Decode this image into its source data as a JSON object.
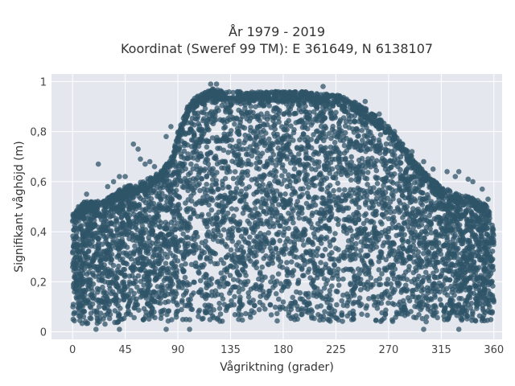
{
  "chart_data": {
    "type": "scatter",
    "title": "År 1979 - 2019",
    "subtitle": "Koordinat (Sweref 99 TM): E 361649, N 6138107",
    "xlabel": "Vågriktning (grader)",
    "ylabel": "Signifikant våghöjd (m)",
    "xlim": [
      -18,
      367
    ],
    "ylim": [
      -0.03,
      1.03
    ],
    "x_ticks": [
      0,
      45,
      90,
      135,
      180,
      225,
      270,
      315,
      360
    ],
    "y_ticks": [
      0,
      0.2,
      0.4,
      0.6,
      0.8,
      1
    ],
    "y_tick_labels": [
      "0",
      "0,2",
      "0,4",
      "0,6",
      "0,8",
      "1"
    ],
    "x_tick_labels": [
      "0",
      "45",
      "90",
      "135",
      "180",
      "225",
      "270",
      "315",
      "360"
    ],
    "grid": true,
    "legend": "none",
    "marker_color": "#2f5468",
    "background_color": "#e5e7ef",
    "envelope": {
      "x": [
        0,
        10,
        20,
        30,
        45,
        60,
        75,
        85,
        90,
        100,
        110,
        120,
        135,
        150,
        180,
        200,
        210,
        225,
        240,
        255,
        270,
        280,
        290,
        300,
        315,
        330,
        345,
        355,
        360
      ],
      "y_max": [
        0.47,
        0.52,
        0.52,
        0.54,
        0.58,
        0.6,
        0.64,
        0.7,
        0.8,
        0.92,
        0.95,
        0.97,
        0.96,
        0.96,
        0.96,
        0.96,
        0.95,
        0.95,
        0.92,
        0.88,
        0.82,
        0.76,
        0.7,
        0.64,
        0.58,
        0.55,
        0.53,
        0.5,
        0.4
      ],
      "y_min": [
        0.03,
        0.03,
        0.03,
        0.03,
        0.04,
        0.04,
        0.04,
        0.04,
        0.04,
        0.04,
        0.04,
        0.04,
        0.04,
        0.04,
        0.04,
        0.04,
        0.04,
        0.04,
        0.04,
        0.04,
        0.04,
        0.04,
        0.04,
        0.04,
        0.04,
        0.04,
        0.04,
        0.04,
        0.05
      ]
    },
    "outliers": [
      {
        "x": 22,
        "y": 0.67
      },
      {
        "x": 40,
        "y": 0.62
      },
      {
        "x": 45,
        "y": 0.62
      },
      {
        "x": 52,
        "y": 0.75
      },
      {
        "x": 56,
        "y": 0.73
      },
      {
        "x": 58,
        "y": 0.69
      },
      {
        "x": 62,
        "y": 0.67
      },
      {
        "x": 66,
        "y": 0.68
      },
      {
        "x": 70,
        "y": 0.66
      },
      {
        "x": 80,
        "y": 0.78
      },
      {
        "x": 84,
        "y": 0.82
      },
      {
        "x": 30,
        "y": 0.58
      },
      {
        "x": 35,
        "y": 0.6
      },
      {
        "x": 12,
        "y": 0.55
      },
      {
        "x": 5,
        "y": 0.5
      },
      {
        "x": 118,
        "y": 0.99
      },
      {
        "x": 123,
        "y": 0.99
      },
      {
        "x": 214,
        "y": 0.98
      },
      {
        "x": 250,
        "y": 0.92
      },
      {
        "x": 262,
        "y": 0.87
      },
      {
        "x": 275,
        "y": 0.8
      },
      {
        "x": 282,
        "y": 0.75
      },
      {
        "x": 290,
        "y": 0.72
      },
      {
        "x": 300,
        "y": 0.68
      },
      {
        "x": 308,
        "y": 0.65
      },
      {
        "x": 320,
        "y": 0.64
      },
      {
        "x": 327,
        "y": 0.62
      },
      {
        "x": 330,
        "y": 0.64
      },
      {
        "x": 338,
        "y": 0.61
      },
      {
        "x": 342,
        "y": 0.6
      },
      {
        "x": 350,
        "y": 0.57
      },
      {
        "x": 355,
        "y": 0.53
      },
      {
        "x": 40,
        "y": 0.01
      },
      {
        "x": 20,
        "y": 0.01
      },
      {
        "x": 80,
        "y": 0.01
      },
      {
        "x": 300,
        "y": 0.01
      },
      {
        "x": 330,
        "y": 0.01
      },
      {
        "x": 100,
        "y": 0.01
      }
    ]
  }
}
